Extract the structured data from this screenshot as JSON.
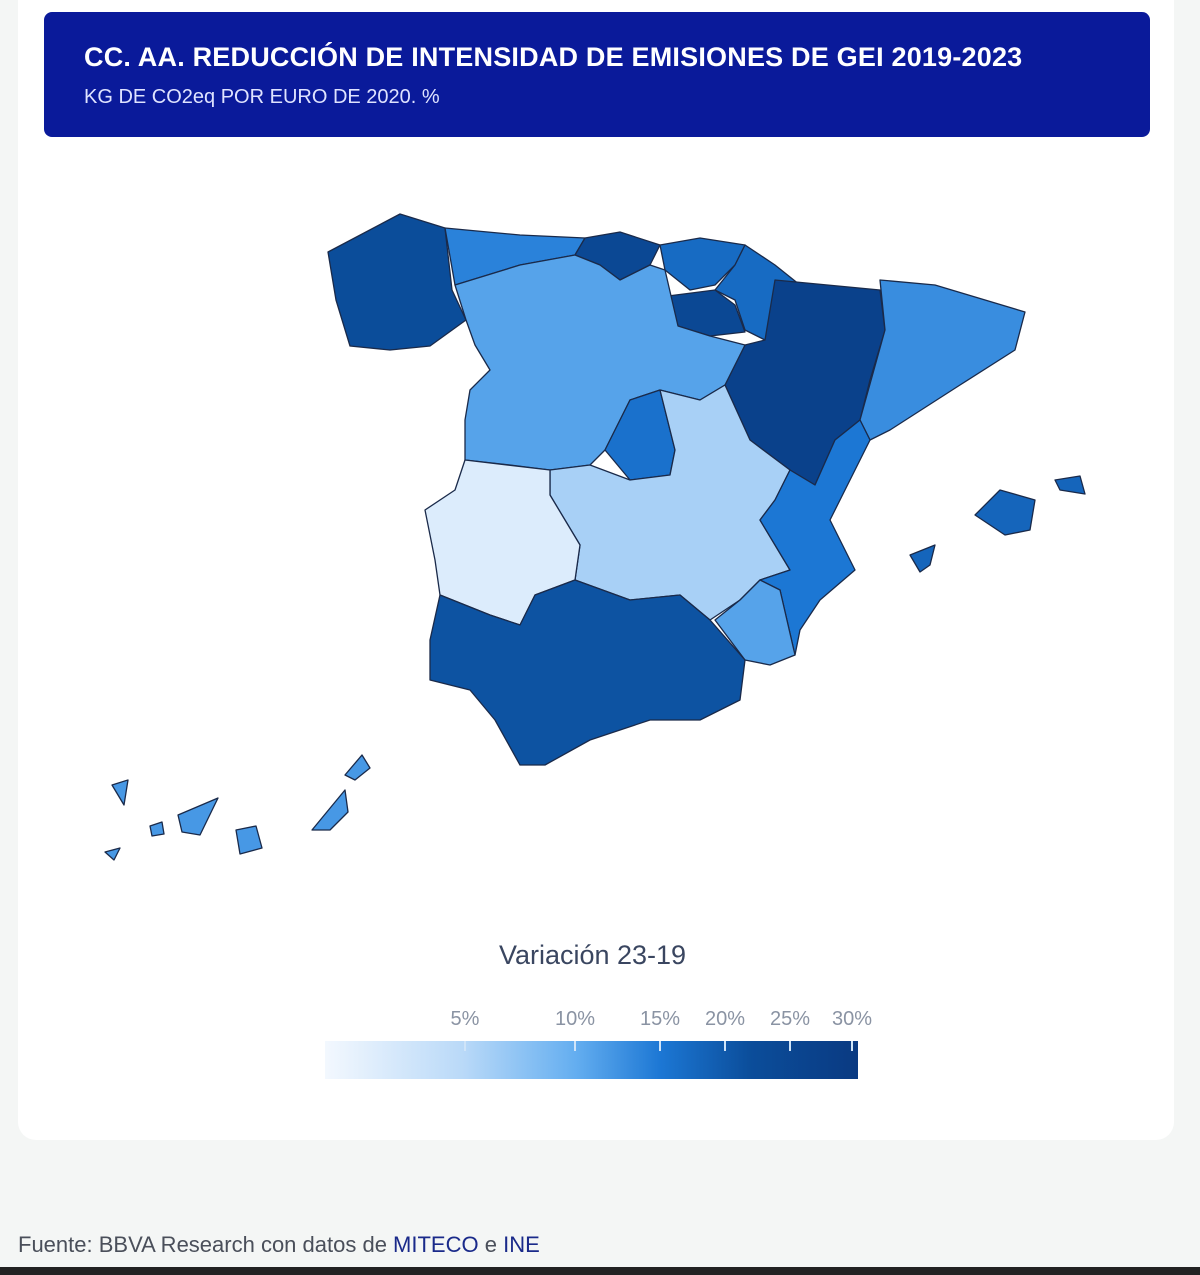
{
  "header": {
    "title": "CC. AA. REDUCCIÓN DE INTENSIDAD DE  EMISIONES DE GEI 2019-2023",
    "subtitle": "KG DE CO2eq POR EURO DE 2020. %"
  },
  "chart_data": {
    "type": "choropleth",
    "title": "CC. AA. REDUCCIÓN DE INTENSIDAD DE  EMISIONES DE GEI 2019-2023",
    "subtitle": "KG DE CO2eq POR EURO DE 2020. %",
    "legend_title": "Variación 23-19",
    "legend_ticks": [
      "5%",
      "10%",
      "15%",
      "20%",
      "25%",
      "30%"
    ],
    "legend_tick_values": [
      5,
      10,
      15,
      20,
      25,
      30
    ],
    "regions": [
      {
        "name": "Galicia",
        "value": 22
      },
      {
        "name": "Asturias",
        "value": 14
      },
      {
        "name": "Cantabria",
        "value": 24
      },
      {
        "name": "País Vasco",
        "value": 17
      },
      {
        "name": "Navarra",
        "value": 17
      },
      {
        "name": "La Rioja",
        "value": 24
      },
      {
        "name": "Aragón",
        "value": 27
      },
      {
        "name": "Cataluña",
        "value": 13
      },
      {
        "name": "Castilla y León",
        "value": 11
      },
      {
        "name": "Madrid",
        "value": 16
      },
      {
        "name": "Castilla-La Mancha",
        "value": 6
      },
      {
        "name": "Extremadura",
        "value": 2
      },
      {
        "name": "Comunidad Valenciana",
        "value": 15
      },
      {
        "name": "Murcia",
        "value": 11
      },
      {
        "name": "Andalucía",
        "value": 21
      },
      {
        "name": "Baleares",
        "value": 18
      },
      {
        "name": "Canarias",
        "value": 12
      }
    ]
  },
  "footer": {
    "prefix": "Fuente: BBVA Research con datos de ",
    "miteco": "MITECO",
    "mid": " e  ",
    "ine": "INE"
  }
}
